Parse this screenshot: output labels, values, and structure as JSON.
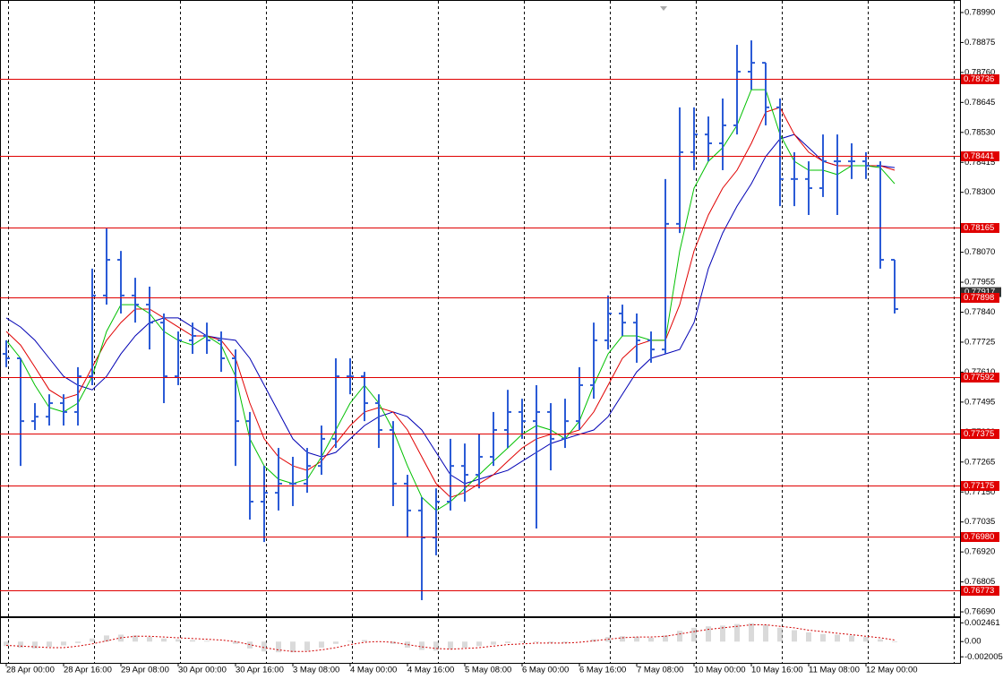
{
  "chart_data": [
    {
      "type": "ohlc",
      "categories": [
        "28 Apr 00:00",
        null,
        null,
        null,
        "28 Apr 16:00",
        null,
        null,
        null,
        "29 Apr 08:00",
        null,
        null,
        null,
        "30 Apr 00:00",
        null,
        null,
        null,
        "30 Apr 16:00",
        null,
        null,
        null,
        "3 May 08:00",
        null,
        null,
        null,
        "4 May 00:00",
        null,
        null,
        null,
        "4 May 16:00",
        null,
        null,
        null,
        "5 May 08:00",
        null,
        null,
        null,
        "6 May 00:00",
        null,
        null,
        null,
        "6 May 16:00",
        null,
        null,
        null,
        "7 May 08:00",
        null,
        null,
        null,
        "10 May 00:00",
        null,
        null,
        null,
        "10 May 16:00",
        null,
        null,
        null,
        "11 May 08:00",
        null,
        null,
        null,
        "12 May 00:00",
        null,
        null
      ],
      "open": [
        0.7768,
        0.77663,
        0.77422,
        0.77439,
        0.77491,
        0.77457,
        0.77594,
        0.77904,
        0.78041,
        0.77904,
        0.77869,
        0.778,
        0.77594,
        0.77732,
        0.77749,
        0.77732,
        0.77663,
        0.77422,
        0.77113,
        0.77147,
        0.77182,
        0.77182,
        0.7725,
        0.77354,
        0.77594,
        0.77594,
        0.77491,
        0.77388,
        0.77182,
        0.77079,
        0.76975,
        0.77113,
        0.7725,
        0.77216,
        0.77285,
        0.77388,
        0.77457,
        0.77422,
        0.77457,
        0.77354,
        0.77422,
        0.7756,
        0.77732,
        0.77835,
        0.778,
        0.77732,
        0.77697,
        0.78179,
        0.78454,
        0.78522,
        0.78488,
        0.78557,
        0.78763,
        0.78797,
        0.78626,
        0.78351,
        0.78351,
        0.78316,
        0.78419,
        0.78419,
        0.78419,
        0.78402,
        0.78041
      ],
      "high": [
        0.77732,
        0.77663,
        0.77491,
        0.77525,
        0.77525,
        0.77629,
        0.78007,
        0.78161,
        0.78075,
        0.77972,
        0.77938,
        0.77835,
        0.77766,
        0.778,
        0.778,
        0.77766,
        0.77697,
        0.77457,
        0.7725,
        0.77319,
        0.77285,
        0.77319,
        0.77405,
        0.77663,
        0.77663,
        0.77611,
        0.77525,
        0.77422,
        0.77216,
        0.7713,
        0.77164,
        0.77354,
        0.77336,
        0.77371,
        0.77457,
        0.77542,
        0.77508,
        0.7756,
        0.77491,
        0.77508,
        0.77629,
        0.778,
        0.77904,
        0.77869,
        0.77835,
        0.77766,
        0.78351,
        0.78626,
        0.78626,
        0.78591,
        0.7866,
        0.78866,
        0.78883,
        0.78797,
        0.7866,
        0.78454,
        0.78419,
        0.78522,
        0.78522,
        0.78488,
        0.78454,
        0.78419,
        0.78041
      ],
      "low": [
        0.77629,
        0.7725,
        0.77388,
        0.77405,
        0.77405,
        0.77405,
        0.7756,
        0.77869,
        0.77835,
        0.778,
        0.77697,
        0.77491,
        0.7756,
        0.7768,
        0.7768,
        0.77611,
        0.7725,
        0.77044,
        0.76958,
        0.77079,
        0.77096,
        0.77147,
        0.77216,
        0.77319,
        0.77525,
        0.77422,
        0.77319,
        0.77096,
        0.76975,
        0.76735,
        0.76907,
        0.77079,
        0.77113,
        0.77164,
        0.7725,
        0.77319,
        0.77354,
        0.7701,
        0.77233,
        0.77319,
        0.77388,
        0.77508,
        0.77697,
        0.77749,
        0.77646,
        0.77646,
        0.7768,
        0.78144,
        0.78385,
        0.78419,
        0.78385,
        0.78522,
        0.78694,
        0.78557,
        0.78247,
        0.78247,
        0.78213,
        0.78282,
        0.78213,
        0.78351,
        0.78351,
        0.78007,
        0.77835
      ],
      "close": [
        0.77663,
        0.77422,
        0.77439,
        0.77491,
        0.77457,
        0.77594,
        0.77904,
        0.78041,
        0.77904,
        0.77869,
        0.778,
        0.77594,
        0.77732,
        0.77749,
        0.77732,
        0.77663,
        0.77422,
        0.77113,
        0.77147,
        0.77182,
        0.77182,
        0.7725,
        0.77354,
        0.77594,
        0.77594,
        0.77491,
        0.77388,
        0.77182,
        0.77079,
        0.76975,
        0.77113,
        0.7725,
        0.77216,
        0.77285,
        0.77388,
        0.77457,
        0.77422,
        0.77457,
        0.77354,
        0.77422,
        0.7756,
        0.77732,
        0.77835,
        0.778,
        0.77732,
        0.77697,
        0.78179,
        0.78454,
        0.78522,
        0.78488,
        0.78557,
        0.78763,
        0.78797,
        0.78626,
        0.78351,
        0.78351,
        0.78316,
        0.78419,
        0.78419,
        0.78419,
        0.78402,
        0.78041,
        0.77852
      ],
      "color": "#2b5bd6",
      "series": [
        {
          "color": "#0000b4",
          "values": [
            0.77818,
            0.77783,
            0.77732,
            0.77663,
            0.77594,
            0.7756,
            0.77542,
            0.77594,
            0.7768,
            0.77749,
            0.778,
            0.77818,
            0.77818,
            0.77783,
            0.77749,
            0.77739,
            0.77732,
            0.77663,
            0.7756,
            0.77457,
            0.77354,
            0.77302,
            0.77285,
            0.77302,
            0.77354,
            0.77405,
            0.77439,
            0.77457,
            0.77439,
            0.77388,
            0.77302,
            0.77216,
            0.77182,
            0.77199,
            0.77216,
            0.77233,
            0.77268,
            0.77302,
            0.77336,
            0.77354,
            0.77371,
            0.77388,
            0.77439,
            0.77525,
            0.77611,
            0.77663,
            0.7768,
            0.77697,
            0.778,
            0.78007,
            0.78144,
            0.78247,
            0.78333,
            0.78437,
            0.78505,
            0.78522,
            0.78471,
            0.78419,
            0.78402,
            0.78402,
            0.78402,
            0.78402,
            0.78395
          ]
        },
        {
          "color": "#e00000",
          "values": [
            0.77766,
            0.77714,
            0.77629,
            0.77542,
            0.77508,
            0.77525,
            0.77629,
            0.77732,
            0.778,
            0.77852,
            0.77852,
            0.77818,
            0.77783,
            0.77749,
            0.77749,
            0.77732,
            0.77663,
            0.77491,
            0.77354,
            0.77285,
            0.7725,
            0.77233,
            0.77268,
            0.77336,
            0.77405,
            0.77457,
            0.77474,
            0.77457,
            0.77388,
            0.77285,
            0.77182,
            0.7713,
            0.77147,
            0.77182,
            0.77216,
            0.77268,
            0.77319,
            0.77354,
            0.77371,
            0.77371,
            0.77388,
            0.77457,
            0.7756,
            0.77663,
            0.77714,
            0.77732,
            0.77732,
            0.77869,
            0.78075,
            0.78213,
            0.78316,
            0.78385,
            0.78488,
            0.78608,
            0.78626,
            0.78522,
            0.78454,
            0.78419,
            0.78402,
            0.78402,
            0.78402,
            0.78402,
            0.78385
          ]
        },
        {
          "color": "#00c000",
          "values": [
            0.77732,
            0.77663,
            0.7756,
            0.77474,
            0.77457,
            0.77491,
            0.77594,
            0.77766,
            0.77869,
            0.77869,
            0.77835,
            0.77766,
            0.77732,
            0.77714,
            0.77749,
            0.77714,
            0.77594,
            0.77354,
            0.7725,
            0.77199,
            0.77182,
            0.77199,
            0.77285,
            0.77388,
            0.77491,
            0.7756,
            0.77491,
            0.77388,
            0.7725,
            0.7713,
            0.77079,
            0.77113,
            0.77164,
            0.77216,
            0.77268,
            0.77319,
            0.77371,
            0.77405,
            0.77388,
            0.77354,
            0.77422,
            0.7756,
            0.7768,
            0.77749,
            0.77749,
            0.77732,
            0.77732,
            0.78075,
            0.78316,
            0.78419,
            0.78471,
            0.78557,
            0.78694,
            0.78694,
            0.78522,
            0.78419,
            0.78385,
            0.78385,
            0.78368,
            0.78402,
            0.78402,
            0.78395,
            0.78333
          ]
        }
      ],
      "levels": {
        "color": "#e00000",
        "values": [
          0.78736,
          0.78441,
          0.78165,
          0.77898,
          0.77592,
          0.77375,
          0.77175,
          {
            "value": 0.7698,
            "label": "0.76980"
          },
          0.76773
        ]
      },
      "bid": 0.77917,
      "ylim": [
        0.76673,
        0.79038
      ],
      "yticks": [
        {
          "value": 0.7899,
          "label": "0.78990"
        },
        0.78875,
        {
          "value": 0.7876,
          "label": "0.78760"
        },
        0.78645,
        {
          "value": 0.7853,
          "label": "0.78530"
        },
        0.78415,
        {
          "value": 0.783,
          "label": "0.78300"
        },
        {
          "value": 0.7807,
          "label": "0.78070"
        },
        0.77955,
        {
          "value": 0.7784,
          "label": "0.77840"
        },
        0.77725,
        {
          "value": 0.7761,
          "label": "0.77610"
        },
        0.77495,
        {
          "value": 0.7738,
          "label": "0.77380"
        },
        0.77265,
        {
          "value": 0.7715,
          "label": "0.77150"
        },
        0.77035,
        {
          "value": 0.7692,
          "label": "0.76920"
        },
        0.76805,
        {
          "value": 0.7669,
          "label": "0.76690"
        }
      ],
      "grid": true
    },
    {
      "type": "bar",
      "values": [
        -0.0006,
        -0.0008,
        -0.0009,
        -0.0007,
        -0.0005,
        -0.0002,
        0.0004,
        0.0008,
        0.0009,
        0.0008,
        0.0006,
        0.0004,
        0.0003,
        0.0002,
        0.0001,
        0,
        -0.0003,
        -0.0009,
        -0.0013,
        -0.0014,
        -0.0014,
        -0.0012,
        -0.0008,
        -0.0003,
        0.0001,
        0.0002,
        0,
        -0.0003,
        -0.0008,
        -0.0011,
        -0.0012,
        -0.001,
        -0.0008,
        -0.0006,
        -0.0004,
        -0.0002,
        -0.0001,
        -0.0001,
        -0.0002,
        -0.0002,
        0,
        0.0003,
        0.0006,
        0.0007,
        0.0006,
        0.0005,
        0.0008,
        0.0014,
        0.0018,
        0.002,
        0.0021,
        0.0023,
        0.0024,
        0.0022,
        0.0018,
        0.0015,
        0.0012,
        0.001,
        0.0009,
        0.0008,
        0.0006,
        0.0003,
        -0.0001
      ],
      "color": "#b4b4b4",
      "series": [
        {
          "color": "#d00000",
          "values": [
            -0.0005,
            -0.0006,
            -0.0007,
            -0.0008,
            -0.0008,
            -0.0006,
            -0.0003,
            0.0001,
            0.0005,
            0.0007,
            0.0007,
            0.0006,
            0.0005,
            0.0004,
            0.0003,
            0.0002,
            0,
            -0.0004,
            -0.0008,
            -0.0011,
            -0.0013,
            -0.0013,
            -0.0011,
            -0.0008,
            -0.0004,
            -0.0001,
            0,
            -0.0001,
            -0.0004,
            -0.0007,
            -0.0009,
            -0.001,
            -0.0009,
            -0.0008,
            -0.0006,
            -0.0004,
            -0.0003,
            -0.0002,
            -0.0002,
            -0.0002,
            -0.0001,
            0.0001,
            0.0003,
            0.0005,
            0.0006,
            0.0006,
            0.0007,
            0.001,
            0.0013,
            0.0016,
            0.0018,
            0.002,
            0.0022,
            0.0022,
            0.002,
            0.0018,
            0.0015,
            0.0013,
            0.0011,
            0.0009,
            0.0007,
            0.0005,
            0.0002
          ]
        }
      ],
      "ylim": [
        -0.0028,
        0.0032
      ],
      "yticks": [
        0.002461,
        {
          "value": 0,
          "label": "0.00"
        },
        -0.002005
      ]
    }
  ]
}
